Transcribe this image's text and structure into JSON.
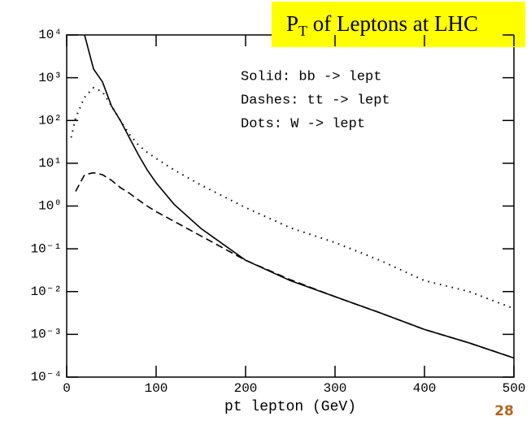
{
  "chart_data": {
    "type": "line",
    "title_parts": [
      "P",
      "T",
      " of Leptons at LHC"
    ],
    "x_label": "pt lepton (GeV)",
    "page_number": "28",
    "x": [
      5,
      10,
      20,
      30,
      40,
      50,
      60,
      70,
      80,
      90,
      100,
      120,
      150,
      200,
      250,
      300,
      350,
      400,
      450,
      500
    ],
    "series": [
      {
        "name": "Solid: bb -> lept",
        "color": "#000000",
        "style": "solid",
        "values": [
          null,
          null,
          10000,
          1600,
          800,
          220,
          100,
          40,
          16,
          7,
          3.5,
          1.1,
          0.3,
          0.054,
          0.018,
          0.0076,
          0.0032,
          0.0013,
          0.00063,
          0.00028
        ]
      },
      {
        "name": "Dashes: tt -> lept",
        "color": "#000000",
        "style": "dashed",
        "values": [
          null,
          2.2,
          5.4,
          6,
          5.4,
          4,
          2.7,
          2,
          1.4,
          1,
          0.74,
          0.44,
          0.2,
          0.054,
          0.019,
          0.0076,
          0.0032,
          0.0013,
          0.00063,
          0.00028
        ]
      },
      {
        "name": "Dots: W -> lept",
        "color": "#000000",
        "style": "dotted",
        "values": [
          40,
          115,
          350,
          580,
          470,
          220,
          100,
          48,
          27,
          18,
          13,
          7,
          3.1,
          0.92,
          0.31,
          0.14,
          0.054,
          0.018,
          0.01,
          0.004
        ]
      }
    ],
    "xlim": [
      0,
      500
    ],
    "xticks": [
      0,
      100,
      200,
      300,
      400,
      500
    ],
    "ylim": [
      0.0001,
      10000
    ],
    "log_y": true,
    "yticks": [
      {
        "value": 0.0001,
        "label": "10⁻⁴"
      },
      {
        "value": 0.001,
        "label": "10⁻³"
      },
      {
        "value": 0.01,
        "label": "10⁻²"
      },
      {
        "value": 0.1,
        "label": "10⁻¹"
      },
      {
        "value": 1,
        "label": "10⁰"
      },
      {
        "value": 10,
        "label": "10¹"
      },
      {
        "value": 100,
        "label": "10²"
      },
      {
        "value": 1000,
        "label": "10³"
      },
      {
        "value": 10000,
        "label": "10⁴"
      }
    ]
  }
}
